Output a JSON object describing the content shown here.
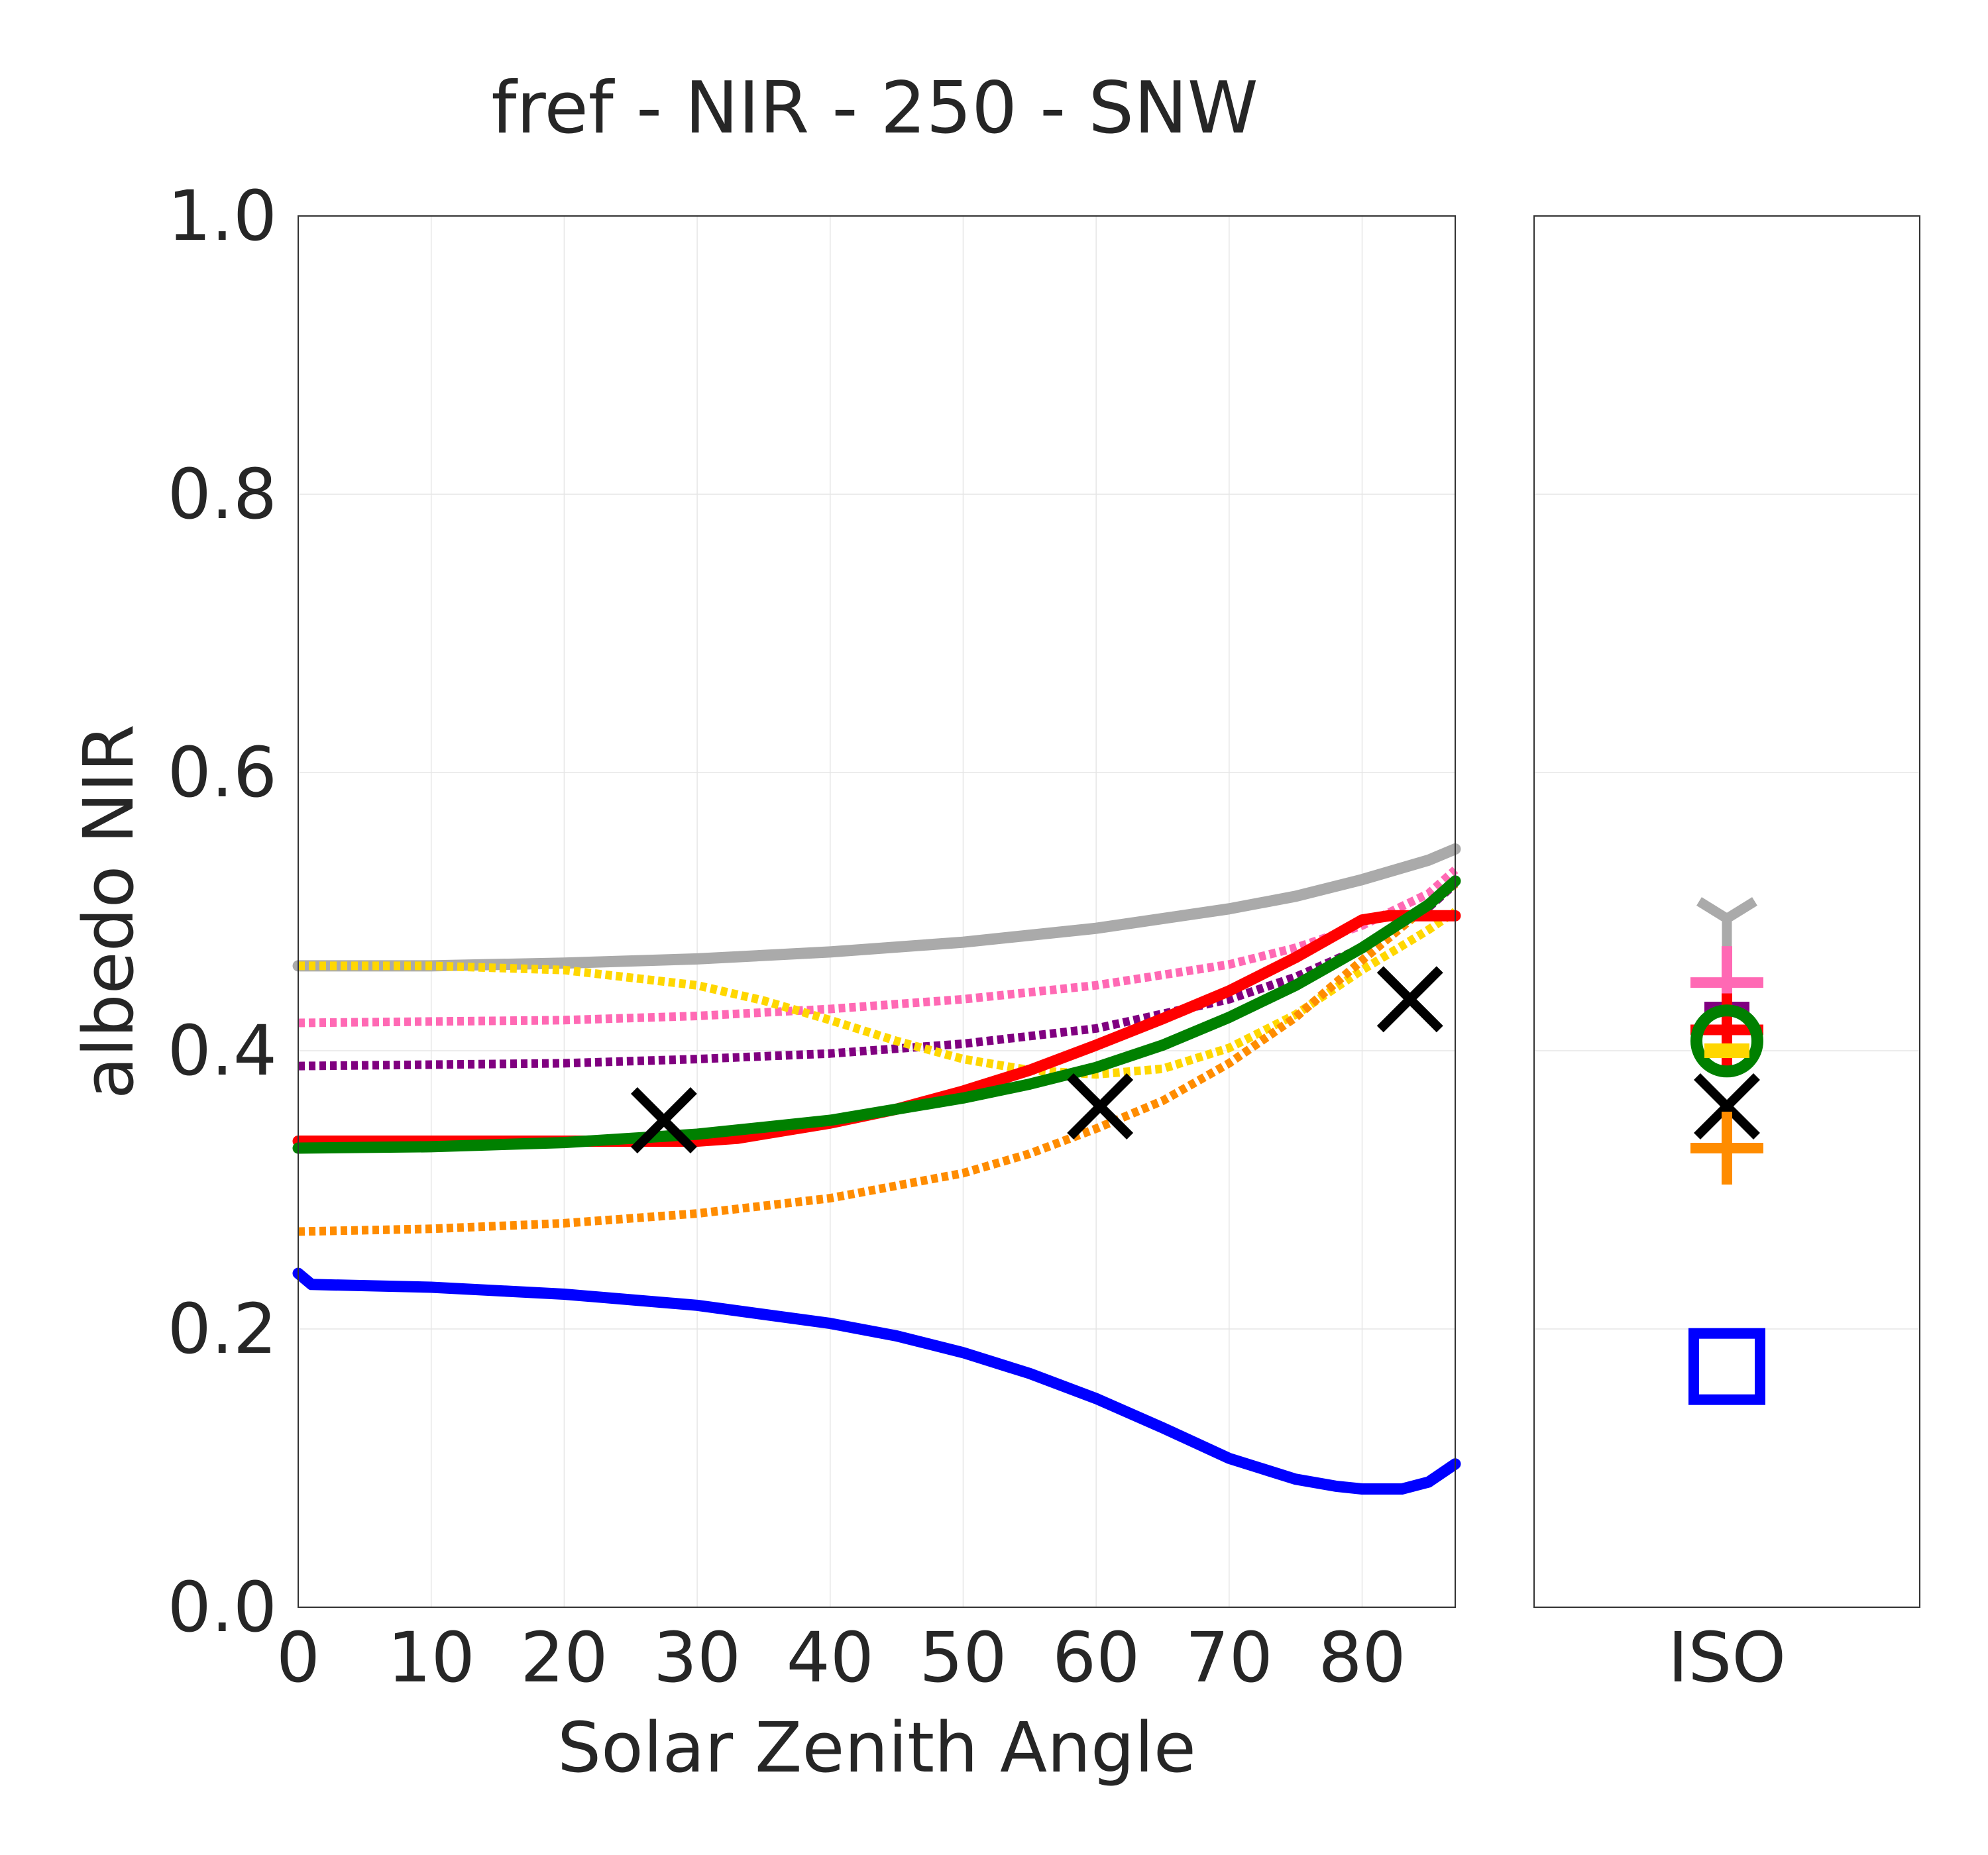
{
  "chart_data": [
    {
      "type": "line",
      "title": "fref - NIR - 250 - SNW",
      "xlabel": "Solar Zenith Angle",
      "ylabel": "albedo NIR",
      "xlim": [
        0,
        87
      ],
      "ylim": [
        0.0,
        1.0
      ],
      "xticks": [
        "0",
        "10",
        "20",
        "30",
        "40",
        "50",
        "60",
        "70",
        "80"
      ],
      "yticks": [
        "0.0",
        "0.2",
        "0.4",
        "0.6",
        "0.8",
        "1.0"
      ],
      "grid": true,
      "series": [
        {
          "color": "#aaaaaa",
          "style": "solid",
          "x": [
            0,
            10,
            20,
            30,
            40,
            50,
            60,
            70,
            75,
            80,
            85,
            87
          ],
          "y": [
            0.461,
            0.461,
            0.463,
            0.466,
            0.471,
            0.478,
            0.488,
            0.502,
            0.511,
            0.523,
            0.537,
            0.545
          ]
        },
        {
          "color": "#ff69b4",
          "style": "dotted",
          "x": [
            0,
            10,
            20,
            30,
            40,
            50,
            60,
            70,
            75,
            80,
            85,
            87
          ],
          "y": [
            0.42,
            0.421,
            0.422,
            0.425,
            0.43,
            0.437,
            0.447,
            0.462,
            0.474,
            0.49,
            0.513,
            0.53
          ]
        },
        {
          "color": "#800080",
          "style": "dotted",
          "x": [
            0,
            10,
            20,
            30,
            40,
            50,
            60,
            70,
            75,
            80,
            85,
            87
          ],
          "y": [
            0.389,
            0.39,
            0.391,
            0.394,
            0.398,
            0.405,
            0.416,
            0.437,
            0.453,
            0.474,
            0.503,
            0.52
          ]
        },
        {
          "color": "#ffd700",
          "style": "dotted",
          "x": [
            0,
            10,
            20,
            30,
            35,
            40,
            45,
            50,
            55,
            60,
            65,
            70,
            75,
            80,
            85,
            87
          ],
          "y": [
            0.461,
            0.461,
            0.458,
            0.447,
            0.436,
            0.422,
            0.407,
            0.394,
            0.386,
            0.383,
            0.387,
            0.402,
            0.426,
            0.458,
            0.487,
            0.5
          ]
        },
        {
          "color": "#ff8c00",
          "style": "dotted",
          "x": [
            0,
            10,
            20,
            30,
            40,
            50,
            55,
            60,
            65,
            70,
            75,
            80,
            85,
            87
          ],
          "y": [
            0.27,
            0.272,
            0.276,
            0.283,
            0.294,
            0.312,
            0.326,
            0.344,
            0.364,
            0.391,
            0.424,
            0.465,
            0.505,
            0.52
          ]
        },
        {
          "color": "#ff0000",
          "style": "solid",
          "x": [
            0,
            10,
            20,
            30,
            33,
            40,
            45,
            50,
            55,
            60,
            65,
            70,
            75,
            80,
            82,
            85,
            87
          ],
          "y": [
            0.335,
            0.335,
            0.335,
            0.335,
            0.337,
            0.348,
            0.358,
            0.371,
            0.386,
            0.404,
            0.423,
            0.443,
            0.467,
            0.494,
            0.497,
            0.497,
            0.497
          ]
        },
        {
          "color": "#008000",
          "style": "solid",
          "x": [
            0,
            10,
            20,
            30,
            40,
            50,
            55,
            60,
            65,
            70,
            75,
            80,
            85,
            87
          ],
          "y": [
            0.33,
            0.331,
            0.334,
            0.34,
            0.35,
            0.366,
            0.376,
            0.388,
            0.404,
            0.424,
            0.447,
            0.474,
            0.505,
            0.522
          ]
        },
        {
          "color": "#0000ff",
          "style": "solid",
          "x": [
            0,
            1,
            10,
            20,
            30,
            40,
            45,
            50,
            55,
            60,
            65,
            70,
            75,
            78,
            80,
            83,
            85,
            87
          ],
          "y": [
            0.24,
            0.232,
            0.23,
            0.225,
            0.217,
            0.204,
            0.195,
            0.183,
            0.168,
            0.15,
            0.129,
            0.107,
            0.092,
            0.087,
            0.085,
            0.085,
            0.09,
            0.103
          ]
        }
      ],
      "markers": {
        "symbol": "x",
        "color": "#000000",
        "x": [
          27.5,
          60.3,
          83.6
        ],
        "y": [
          0.35,
          0.36,
          0.437
        ]
      }
    },
    {
      "type": "scatter",
      "xticks": [
        "ISO"
      ],
      "ylim": [
        0.0,
        1.0
      ],
      "points": [
        {
          "symbol": "tri_down",
          "color": "#aaaaaa",
          "value": 0.495
        },
        {
          "symbol": "plus",
          "color": "#ff69b4",
          "value": 0.449
        },
        {
          "symbol": "underscore",
          "color": "#800080",
          "value": 0.43
        },
        {
          "symbol": "plus",
          "color": "#ff0000",
          "value": 0.415
        },
        {
          "symbol": "circle",
          "color": "#008000",
          "value": 0.407
        },
        {
          "symbol": "underscore",
          "color": "#ffd700",
          "value": 0.4
        },
        {
          "symbol": "x",
          "color": "#000000",
          "value": 0.36
        },
        {
          "symbol": "plus",
          "color": "#ff8c00",
          "value": 0.33
        },
        {
          "symbol": "square",
          "color": "#0000ff",
          "value": 0.173
        }
      ]
    }
  ]
}
